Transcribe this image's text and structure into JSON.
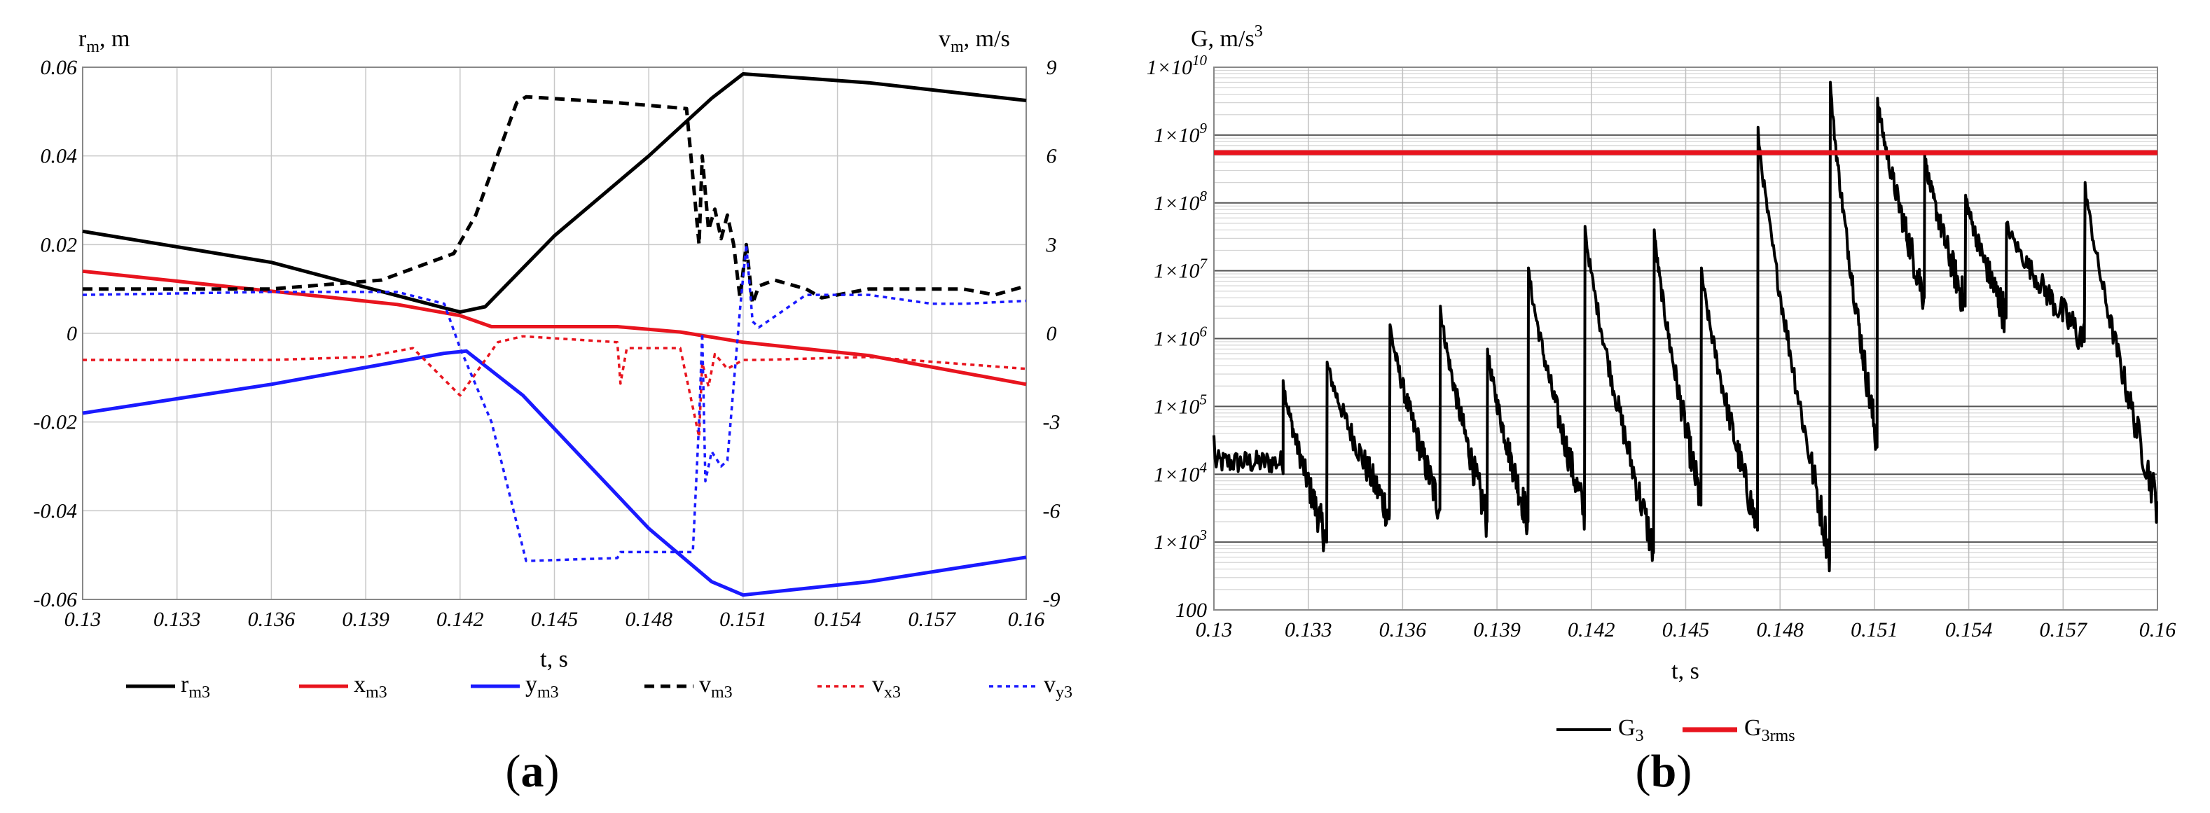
{
  "chart_data": [
    {
      "type": "line",
      "panel_label": "(a)",
      "panel_letter": "a",
      "xlabel": "t, s",
      "ylabel_left": "r",
      "ylabel_left_sub": "m",
      "ylabel_left_unit": ", m",
      "ylabel_right": "v",
      "ylabel_right_sub": "m",
      "ylabel_right_unit": ", m/s",
      "xlim": [
        0.13,
        0.16
      ],
      "ylim_left": [
        -0.06,
        0.06
      ],
      "ylim_right": [
        -9,
        9
      ],
      "xticks": [
        "0.13",
        "0.133",
        "0.136",
        "0.139",
        "0.142",
        "0.145",
        "0.148",
        "0.151",
        "0.154",
        "0.157",
        "0.16"
      ],
      "yticks_left": [
        "0.06",
        "0.04",
        "0.02",
        "0",
        "-0.02",
        "-0.04",
        "-0.06"
      ],
      "yticks_right": [
        "9",
        "6",
        "3",
        "0",
        "-3",
        "-6",
        "-9"
      ],
      "grid": true,
      "series": [
        {
          "name": "rm3",
          "main": "r",
          "sub": "m3",
          "axis": "left",
          "color": "#000000",
          "dash": "solid",
          "x": [
            0.13,
            0.136,
            0.14,
            0.142,
            0.1428,
            0.145,
            0.148,
            0.15,
            0.151,
            0.155,
            0.16
          ],
          "y": [
            0.023,
            0.016,
            0.0085,
            0.0048,
            0.006,
            0.022,
            0.04,
            0.053,
            0.0585,
            0.0565,
            0.0525
          ]
        },
        {
          "name": "xm3",
          "main": "x",
          "sub": "m3",
          "axis": "left",
          "color": "#e8141e",
          "dash": "solid",
          "x": [
            0.13,
            0.136,
            0.14,
            0.142,
            0.143,
            0.147,
            0.149,
            0.151,
            0.155,
            0.16
          ],
          "y": [
            0.014,
            0.0095,
            0.0065,
            0.004,
            0.0015,
            0.0015,
            0.0003,
            -0.002,
            -0.005,
            -0.0115
          ]
        },
        {
          "name": "ym3",
          "main": "y",
          "sub": "m3",
          "axis": "left",
          "color": "#1a1aff",
          "dash": "solid",
          "x": [
            0.13,
            0.136,
            0.1415,
            0.1422,
            0.144,
            0.148,
            0.15,
            0.151,
            0.155,
            0.16
          ],
          "y": [
            -0.018,
            -0.0115,
            -0.0045,
            -0.004,
            -0.014,
            -0.044,
            -0.056,
            -0.059,
            -0.056,
            -0.0505
          ]
        },
        {
          "name": "vm3",
          "main": "v",
          "sub": "m3",
          "axis": "right",
          "color": "#000000",
          "dash": "dashed",
          "x": [
            0.13,
            0.136,
            0.1395,
            0.1418,
            0.1425,
            0.1438,
            0.1441,
            0.147,
            0.1492,
            0.1496,
            0.1497,
            0.1499,
            0.1501,
            0.1503,
            0.1505,
            0.1507,
            0.1509,
            0.1511,
            0.1513,
            0.1515,
            0.152,
            0.153,
            0.1535,
            0.155,
            0.158,
            0.159,
            0.16
          ],
          "y": [
            1.5,
            1.5,
            1.8,
            2.7,
            4.0,
            7.8,
            8.0,
            7.8,
            7.6,
            3.0,
            6.0,
            3.5,
            4.2,
            3.2,
            4.0,
            3.0,
            1.2,
            3.0,
            1.0,
            1.6,
            1.8,
            1.5,
            1.2,
            1.5,
            1.5,
            1.3,
            1.6
          ]
        },
        {
          "name": "vx3",
          "main": "v",
          "sub": "x3",
          "axis": "right",
          "color": "#e8141e",
          "dash": "dotted",
          "x": [
            0.13,
            0.136,
            0.139,
            0.1405,
            0.142,
            0.1432,
            0.144,
            0.147,
            0.1471,
            0.1473,
            0.149,
            0.1496,
            0.1497,
            0.1499,
            0.1501,
            0.1505,
            0.151,
            0.1515,
            0.155,
            0.16
          ],
          "y": [
            -0.9,
            -0.9,
            -0.8,
            -0.5,
            -2.1,
            -0.3,
            -0.1,
            -0.3,
            -1.7,
            -0.5,
            -0.5,
            -3.5,
            -1.0,
            -1.8,
            -0.7,
            -1.2,
            -0.9,
            -0.9,
            -0.8,
            -1.2
          ]
        },
        {
          "name": "vy3",
          "main": "v",
          "sub": "y3",
          "axis": "right",
          "color": "#1a1aff",
          "dash": "dotted",
          "x": [
            0.13,
            0.136,
            0.14,
            0.1415,
            0.142,
            0.143,
            0.1441,
            0.147,
            0.1471,
            0.1494,
            0.1496,
            0.1497,
            0.1498,
            0.15,
            0.1503,
            0.1505,
            0.1509,
            0.1511,
            0.1513,
            0.1515,
            0.153,
            0.155,
            0.157,
            0.158,
            0.16
          ],
          "y": [
            1.3,
            1.4,
            1.4,
            1.0,
            -0.5,
            -3.0,
            -7.7,
            -7.6,
            -7.4,
            -7.4,
            -3.0,
            0.0,
            -5.0,
            -4.0,
            -4.5,
            -4.3,
            0.8,
            3.0,
            0.4,
            0.2,
            1.3,
            1.3,
            1.0,
            1.0,
            1.1
          ]
        }
      ]
    },
    {
      "type": "line",
      "panel_label": "(b)",
      "panel_letter": "b",
      "xlabel": "t, s",
      "ylabel": "G, m/s",
      "ylabel_exp": "3",
      "xlim": [
        0.13,
        0.16
      ],
      "y_scale": "log",
      "ylim": [
        100,
        10000000000
      ],
      "xticks": [
        "0.13",
        "0.133",
        "0.136",
        "0.139",
        "0.142",
        "0.145",
        "0.148",
        "0.151",
        "0.154",
        "0.157",
        "0.16"
      ],
      "yticks": [
        {
          "value": 100,
          "mant": "100",
          "exp": ""
        },
        {
          "value": 1000,
          "mant": "1×10",
          "exp": "3"
        },
        {
          "value": 10000,
          "mant": "1×10",
          "exp": "4"
        },
        {
          "value": 100000,
          "mant": "1×10",
          "exp": "5"
        },
        {
          "value": 1000000,
          "mant": "1×10",
          "exp": "6"
        },
        {
          "value": 10000000,
          "mant": "1×10",
          "exp": "7"
        },
        {
          "value": 100000000,
          "mant": "1×10",
          "exp": "8"
        },
        {
          "value": 1000000000,
          "mant": "1×10",
          "exp": "9"
        },
        {
          "value": 10000000000,
          "mant": "1×10",
          "exp": "10"
        }
      ],
      "grid": true,
      "threshold": {
        "name": "G3rms",
        "main": "G",
        "sub": "3rms",
        "value": 550000000,
        "color": "#e8141e"
      },
      "series": [
        {
          "name": "G3",
          "main": "G",
          "sub": "3",
          "color": "#000000",
          "peaks": [
            {
              "t0": 0.13,
              "t1": 0.1322,
              "lo": 15000,
              "hi": 40000,
              "start": 15000
            },
            {
              "t0": 0.1322,
              "t1": 0.1336,
              "lo": 1000,
              "hi": 240000
            },
            {
              "t0": 0.1336,
              "t1": 0.1356,
              "lo": 2500,
              "hi": 450000
            },
            {
              "t0": 0.1356,
              "t1": 0.1372,
              "lo": 3000,
              "hi": 1600000
            },
            {
              "t0": 0.1372,
              "t1": 0.1387,
              "lo": 2000,
              "hi": 3000000
            },
            {
              "t0": 0.1387,
              "t1": 0.14,
              "lo": 2000,
              "hi": 700000
            },
            {
              "t0": 0.14,
              "t1": 0.1418,
              "lo": 2500,
              "hi": 11000000
            },
            {
              "t0": 0.1418,
              "t1": 0.144,
              "lo": 700,
              "hi": 45000000
            },
            {
              "t0": 0.144,
              "t1": 0.1455,
              "lo": 3500,
              "hi": 40000000
            },
            {
              "t0": 0.1455,
              "t1": 0.1473,
              "lo": 1500,
              "hi": 11000000
            },
            {
              "t0": 0.1473,
              "t1": 0.1496,
              "lo": 600,
              "hi": 1300000000
            },
            {
              "t0": 0.1496,
              "t1": 0.1511,
              "lo": 25000,
              "hi": 6000000000
            },
            {
              "t0": 0.1511,
              "t1": 0.1526,
              "lo": 4000000,
              "hi": 3500000000
            },
            {
              "t0": 0.1526,
              "t1": 0.1539,
              "lo": 3000000,
              "hi": 500000000
            },
            {
              "t0": 0.1539,
              "t1": 0.1552,
              "lo": 2000000,
              "hi": 130000000
            },
            {
              "t0": 0.1552,
              "t1": 0.1577,
              "lo": 900000,
              "hi": 50000000
            },
            {
              "t0": 0.1577,
              "t1": 0.16,
              "lo": 3500,
              "hi": 200000000,
              "end": 4000
            }
          ]
        }
      ]
    }
  ]
}
